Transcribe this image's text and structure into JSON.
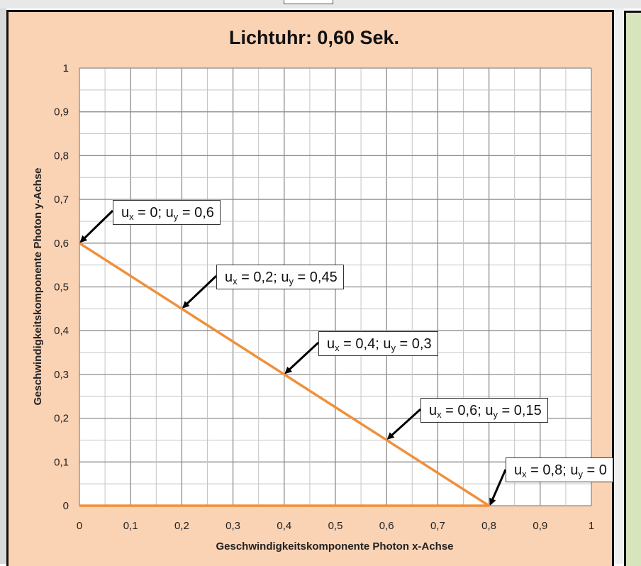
{
  "chart_data": {
    "type": "line",
    "title": "Lichtuhr: 0,60 Sek.",
    "xlabel": "Geschwindigkeitskomponente  Photon x-Achse",
    "ylabel": "Geschwindigkeitskomponente  Photon y-Achse",
    "xlim": [
      0,
      1
    ],
    "ylim": [
      0,
      1
    ],
    "x_ticks": [
      "0",
      "0,1",
      "0,2",
      "0,3",
      "0,4",
      "0,5",
      "0,6",
      "0,7",
      "0,8",
      "0,9",
      "1"
    ],
    "y_ticks": [
      "0",
      "0,1",
      "0,2",
      "0,3",
      "0,4",
      "0,5",
      "0,6",
      "0,7",
      "0,8",
      "0,9",
      "1"
    ],
    "grid": true,
    "minor_grid": true,
    "line_color": "#f0903c",
    "series": [
      {
        "x": [
          0,
          0.2,
          0.4,
          0.6,
          0.8
        ],
        "y": [
          0.6,
          0.45,
          0.3,
          0.15,
          0
        ]
      },
      {
        "x": [
          0,
          0.8
        ],
        "y": [
          0,
          0
        ]
      }
    ],
    "annotations": [
      {
        "x": 0,
        "y": 0.6,
        "ux": "0",
        "uy": "0,6"
      },
      {
        "x": 0.2,
        "y": 0.45,
        "ux": "0,2",
        "uy": "0,45"
      },
      {
        "x": 0.4,
        "y": 0.3,
        "ux": "0,4",
        "uy": "0,3"
      },
      {
        "x": 0.6,
        "y": 0.15,
        "ux": "0,6",
        "uy": "0,15"
      },
      {
        "x": 0.8,
        "y": 0,
        "ux": "0,8",
        "uy": "0"
      }
    ]
  }
}
